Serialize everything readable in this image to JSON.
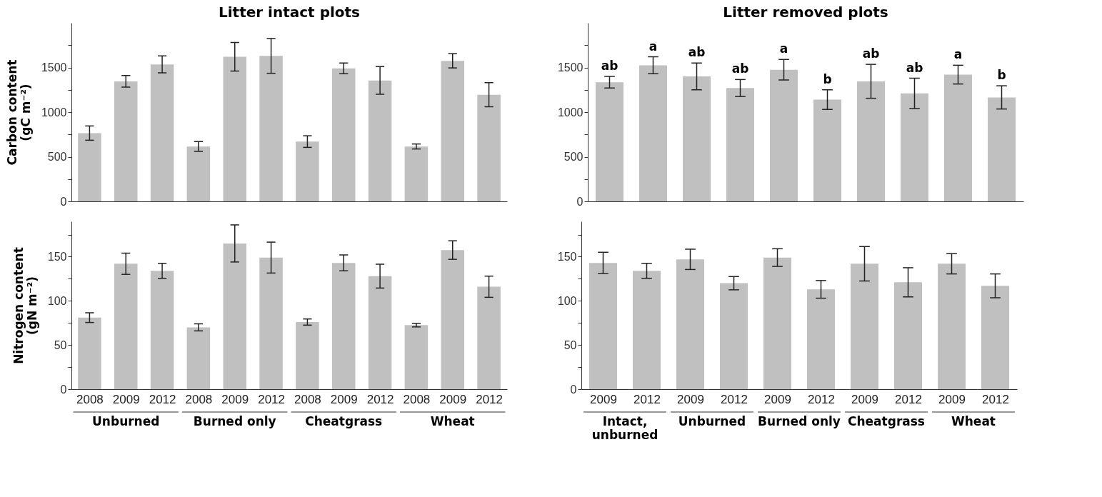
{
  "chart_data": [
    {
      "type": "bar",
      "title": "Litter intact plots",
      "ylabel": "Carbon content (gC m⁻²)",
      "color": "#c0c0c0",
      "tick_labels": "y",
      "categories": [
        "2008",
        "2009",
        "2012",
        "2008",
        "2009",
        "2012",
        "2008",
        "2009",
        "2012",
        "2008",
        "2009",
        "2012"
      ],
      "values": [
        765,
        1345,
        1535,
        615,
        1620,
        1630,
        670,
        1490,
        1355,
        615,
        1575,
        1195
      ],
      "errors": [
        80,
        65,
        95,
        55,
        160,
        195,
        65,
        60,
        155,
        28,
        80,
        135
      ],
      "ylim": [
        0,
        2000
      ],
      "yticks": [
        0,
        {
          "value": 250,
          "label": null
        },
        500,
        {
          "value": 750,
          "label": null
        },
        1000,
        {
          "value": 1250,
          "label": null
        },
        1500,
        {
          "value": 1750,
          "label": null
        }
      ]
    },
    {
      "type": "bar",
      "title": "Litter removed plots",
      "color": "#c0c0c0",
      "tick_labels": "y",
      "categories": [
        "2009",
        "2012",
        "2009",
        "2012",
        "2009",
        "2012",
        "2009",
        "2012",
        "2009",
        "2012"
      ],
      "values": [
        1335,
        1525,
        1400,
        1270,
        1475,
        1140,
        1345,
        1210,
        1420,
        1165
      ],
      "errors": [
        65,
        95,
        150,
        95,
        115,
        110,
        190,
        170,
        105,
        130
      ],
      "value_labels": [
        "ab",
        "a",
        "ab",
        "ab",
        "a",
        "b",
        "ab",
        "ab",
        "a",
        "b"
      ],
      "ylim": [
        0,
        2000
      ],
      "yticks": [
        0,
        {
          "value": 250,
          "label": null
        },
        500,
        {
          "value": 750,
          "label": null
        },
        1000,
        {
          "value": 1250,
          "label": null
        },
        1500,
        {
          "value": 1750,
          "label": null
        }
      ]
    },
    {
      "type": "bar",
      "ylabel": "Nitrogen content (gN m⁻²)",
      "color": "#c0c0c0",
      "categories": [
        "2008",
        "2009",
        "2012",
        "2008",
        "2009",
        "2012",
        "2008",
        "2009",
        "2012",
        "2008",
        "2009",
        "2012"
      ],
      "values": [
        81,
        142,
        134,
        70,
        165,
        149,
        76,
        143,
        128,
        72.5,
        157.5,
        116
      ],
      "errors": [
        5.5,
        12,
        8.5,
        4,
        21,
        17.5,
        3.5,
        9,
        13.5,
        2,
        10.5,
        12
      ],
      "annotations": [
        "Unburned",
        "Burned only",
        "Cheatgrass",
        "Wheat"
      ],
      "ylim": [
        0,
        190
      ],
      "yticks": [
        0,
        {
          "value": 25,
          "label": null
        },
        50,
        {
          "value": 75,
          "label": null
        },
        100,
        {
          "value": 125,
          "label": null
        },
        150,
        {
          "value": 175,
          "label": null
        }
      ]
    },
    {
      "type": "bar",
      "color": "#c0c0c0",
      "categories": [
        "2009",
        "2012",
        "2009",
        "2012",
        "2009",
        "2012",
        "2009",
        "2012",
        "2009",
        "2012"
      ],
      "values": [
        143,
        134,
        147,
        120,
        149,
        113,
        142,
        121,
        142,
        117
      ],
      "errors": [
        12,
        8.5,
        11.5,
        7.5,
        10,
        10,
        19.5,
        16.5,
        11.5,
        13.5
      ],
      "annotations": [
        "Intact, unburned",
        "Unburned",
        "Burned only",
        "Cheatgrass",
        "Wheat"
      ],
      "ylim": [
        0,
        190
      ],
      "yticks": [
        0,
        {
          "value": 25,
          "label": null
        },
        50,
        {
          "value": 75,
          "label": null
        },
        100,
        {
          "value": 125,
          "label": null
        },
        150,
        {
          "value": 175,
          "label": null
        }
      ]
    }
  ]
}
